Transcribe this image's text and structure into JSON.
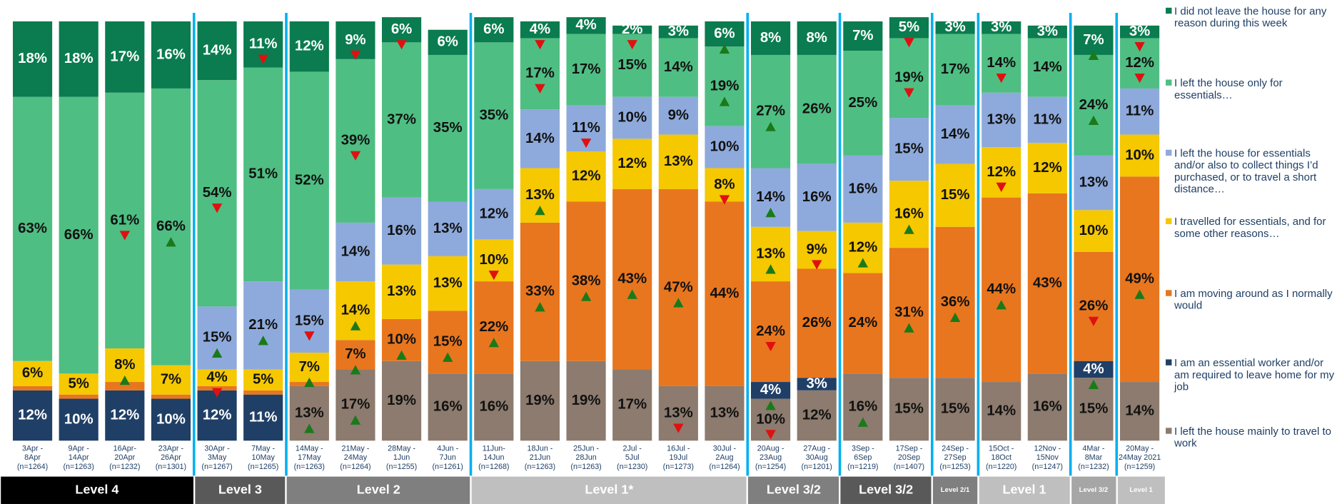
{
  "chart_data": {
    "type": "stacked_bar",
    "ylim": [
      0,
      100
    ],
    "categories": [
      [
        "3Apr -",
        "8Apr",
        "(n=1264)"
      ],
      [
        "9Apr -",
        "14Apr",
        "(n=1263)"
      ],
      [
        "16Apr-",
        "20Apr",
        "(n=1232)"
      ],
      [
        "23Apr -",
        "26Apr",
        "(n=1301)"
      ],
      [
        "30Apr -",
        "3May",
        "(n=1267)"
      ],
      [
        "7May -",
        "10May",
        "(n=1265)"
      ],
      [
        "14May -",
        "17May",
        "(n=1263)"
      ],
      [
        "21May -",
        "24May",
        "(n=1264)"
      ],
      [
        "28May -",
        "1Jun",
        "(n=1255)"
      ],
      [
        "4Jun -",
        "7Jun",
        "(n=1261)"
      ],
      [
        "11Jun-",
        "14Jun",
        "(n=1268)"
      ],
      [
        "18Jun -",
        "21Jun",
        "(n=1263)"
      ],
      [
        "25Jun -",
        "28Jun",
        "(n=1263)"
      ],
      [
        "2Jul -",
        "5Jul",
        "(n=1230)"
      ],
      [
        "16Jul -",
        "19Jul",
        "(n=1273)"
      ],
      [
        "30Jul -",
        "2Aug",
        "(n=1264)"
      ],
      [
        "20Aug -",
        "23Aug",
        "(n=1254)"
      ],
      [
        "27Aug -",
        "30Aug",
        "(n=1201)"
      ],
      [
        "3Sep -",
        "6Sep",
        "(n=1219)"
      ],
      [
        "17Sep -",
        "20Sep",
        "(n=1407)"
      ],
      [
        "24Sep -",
        "27Sep",
        "(n=1253)"
      ],
      [
        "15Oct -",
        "18Oct",
        "(n=1220)"
      ],
      [
        "12Nov -",
        "15Nov",
        "(n=1247)"
      ],
      [
        "4Mar -",
        "8Mar",
        "(n=1232)"
      ],
      [
        "20May -",
        "24May 2021",
        "(n=1259)"
      ]
    ],
    "series": [
      {
        "name": "I did not leave the house for any reason during this week",
        "color": "#0a7c4f",
        "label_color": "#ffffff",
        "values": [
          18,
          18,
          17,
          16,
          14,
          11,
          12,
          9,
          6,
          6,
          6,
          4,
          4,
          2,
          3,
          6,
          8,
          8,
          7,
          5,
          3,
          3,
          3,
          7,
          3
        ],
        "value_labels": [
          "18%",
          "18%",
          "17%",
          "16%",
          "14%",
          "11%",
          "12%",
          "9%",
          "6%",
          "6%",
          "6%",
          "4%",
          "4%",
          "2%",
          "3%",
          "6%",
          "8%",
          "8%",
          "7%",
          "5%",
          "3%",
          "3%",
          "3%",
          "7%",
          "3%"
        ],
        "arrows": [
          null,
          null,
          null,
          null,
          null,
          "down",
          null,
          "down",
          "down",
          null,
          null,
          "down",
          null,
          "down",
          null,
          "up",
          null,
          null,
          null,
          "down",
          null,
          null,
          null,
          "up",
          "down"
        ]
      },
      {
        "name": "I left the house only for essentials…",
        "color": "#4fbe83",
        "label_color": "#111111",
        "values": [
          63,
          66,
          61,
          66,
          54,
          51,
          52,
          39,
          37,
          35,
          35,
          17,
          17,
          15,
          14,
          19,
          27,
          26,
          25,
          19,
          17,
          14,
          14,
          24,
          12
        ],
        "value_labels": [
          "63%",
          "66%",
          "61%",
          "66%",
          "54%",
          "51%",
          "52%",
          "39%",
          "37%",
          "35%",
          "35%",
          "17%",
          "17%",
          "15%",
          "14%",
          "19%",
          "27%",
          "26%",
          "25%",
          "19%",
          "17%",
          "14%",
          "14%",
          "24%",
          "12%"
        ],
        "arrows": [
          null,
          null,
          "down",
          "up",
          "down",
          null,
          null,
          "down",
          null,
          null,
          null,
          "down",
          null,
          null,
          null,
          "up",
          "up",
          null,
          null,
          "down",
          null,
          "down",
          null,
          "up",
          "down"
        ]
      },
      {
        "name": "I left the house for essentials and/or also to collect things I’d purchased, or to travel a short distance…",
        "color": "#8eaadc",
        "label_color": "#111111",
        "values": [
          null,
          null,
          null,
          null,
          15,
          21,
          15,
          14,
          16,
          13,
          12,
          14,
          11,
          10,
          9,
          10,
          14,
          16,
          16,
          15,
          14,
          13,
          11,
          13,
          11
        ],
        "value_labels": [
          null,
          null,
          null,
          null,
          "15%",
          "21%",
          "15%",
          "14%",
          "16%",
          "13%",
          "12%",
          "14%",
          "11%",
          "10%",
          "9%",
          "10%",
          "14%",
          "16%",
          "16%",
          "15%",
          "14%",
          "13%",
          "11%",
          "13%",
          "11%"
        ],
        "arrows": [
          null,
          null,
          null,
          null,
          "up",
          "up",
          "down",
          null,
          null,
          null,
          null,
          null,
          "down",
          null,
          null,
          null,
          "up",
          null,
          null,
          null,
          null,
          null,
          null,
          null,
          null
        ]
      },
      {
        "name": "I travelled for essentials, and for some other reasons…",
        "color": "#f5c800",
        "label_color": "#111111",
        "values": [
          6,
          5,
          8,
          7,
          4,
          5,
          7,
          14,
          13,
          13,
          10,
          13,
          12,
          12,
          13,
          8,
          13,
          9,
          12,
          16,
          15,
          12,
          12,
          10,
          10
        ],
        "value_labels": [
          "6%",
          "5%",
          "8%",
          "7%",
          "4%",
          "5%",
          "7%",
          "14%",
          "13%",
          "13%",
          "10%",
          "13%",
          "12%",
          "12%",
          "13%",
          "8%",
          "13%",
          "9%",
          "12%",
          "16%",
          "15%",
          "12%",
          "12%",
          "10%",
          "10%"
        ],
        "arrows": [
          null,
          null,
          "up",
          null,
          "down",
          null,
          "up",
          "up",
          null,
          null,
          "down",
          "up",
          null,
          null,
          null,
          "down",
          "up",
          "down",
          "up",
          "up",
          null,
          "down",
          null,
          null,
          null
        ]
      },
      {
        "name": "I am moving around as I normally would",
        "color": "#e8761e",
        "label_color": "#111111",
        "values": [
          1,
          1,
          2,
          1,
          1,
          1,
          1,
          7,
          10,
          15,
          22,
          33,
          38,
          43,
          47,
          44,
          24,
          26,
          24,
          31,
          36,
          44,
          43,
          26,
          49
        ],
        "value_labels": [
          null,
          null,
          null,
          null,
          null,
          null,
          null,
          "7%",
          "10%",
          "15%",
          "22%",
          "33%",
          "38%",
          "43%",
          "47%",
          "44%",
          "24%",
          "26%",
          "24%",
          "31%",
          "36%",
          "44%",
          "43%",
          "26%",
          "49%"
        ],
        "arrows": [
          null,
          null,
          null,
          null,
          null,
          null,
          null,
          "up",
          "up",
          "up",
          "up",
          "up",
          "up",
          "up",
          "up",
          null,
          "down",
          null,
          null,
          "up",
          "up",
          "up",
          null,
          "down",
          "up"
        ]
      },
      {
        "name": "I am an essential worker and/or am required to leave home for my job",
        "color": "#1f3f66",
        "label_color": "#ffffff",
        "values": [
          12,
          10,
          12,
          10,
          12,
          11,
          null,
          null,
          null,
          null,
          null,
          null,
          null,
          null,
          null,
          null,
          4,
          3,
          null,
          null,
          null,
          null,
          null,
          4,
          null
        ],
        "value_labels": [
          "12%",
          "10%",
          "12%",
          "10%",
          "12%",
          "11%",
          null,
          null,
          null,
          null,
          null,
          null,
          null,
          null,
          null,
          null,
          "4%",
          "3%",
          null,
          null,
          null,
          null,
          null,
          "4%",
          null
        ],
        "arrows": [
          null,
          null,
          null,
          null,
          null,
          null,
          null,
          null,
          null,
          null,
          null,
          null,
          null,
          null,
          null,
          null,
          "up",
          null,
          null,
          null,
          null,
          null,
          null,
          "up",
          null
        ]
      },
      {
        "name": "I left the house mainly to travel to work",
        "color": "#8c7b6e",
        "label_color": "#111111",
        "values": [
          null,
          null,
          null,
          null,
          null,
          null,
          13,
          17,
          19,
          16,
          16,
          19,
          19,
          17,
          13,
          13,
          10,
          12,
          16,
          15,
          15,
          14,
          16,
          15,
          14
        ],
        "value_labels": [
          null,
          null,
          null,
          null,
          null,
          null,
          "13%",
          "17%",
          "19%",
          "16%",
          "16%",
          "19%",
          "19%",
          "17%",
          "13%",
          "13%",
          "10%",
          "12%",
          "16%",
          "15%",
          "15%",
          "14%",
          "16%",
          "15%",
          "14%"
        ],
        "arrows": [
          null,
          null,
          null,
          null,
          null,
          null,
          "up",
          "up",
          null,
          null,
          null,
          null,
          null,
          null,
          "down",
          null,
          "down",
          null,
          "up",
          null,
          null,
          null,
          null,
          null,
          null
        ]
      }
    ],
    "groups": [
      {
        "label": "Level 4",
        "bars": 4,
        "color": "#000000"
      },
      {
        "label": "Level 3",
        "bars": 2,
        "color": "#595959"
      },
      {
        "label": "Level 2",
        "bars": 4,
        "color": "#7f7f7f"
      },
      {
        "label": "Level 1*",
        "bars": 6,
        "color": "#bfbfbf"
      },
      {
        "label": "Level 3/2",
        "bars": 2,
        "color": "#7f7f7f"
      },
      {
        "label": "Level 3/2",
        "bars": 2,
        "color": "#595959"
      },
      {
        "label": "Level 2/1",
        "bars": 1,
        "color": "#7f7f7f"
      },
      {
        "label": "Level 1",
        "bars": 2,
        "color": "#bfbfbf"
      },
      {
        "label": "Level 3/2",
        "bars": 1,
        "color": "#a6a6a6"
      },
      {
        "label": "Level 1",
        "bars": 1,
        "color": "#bfbfbf"
      }
    ]
  }
}
